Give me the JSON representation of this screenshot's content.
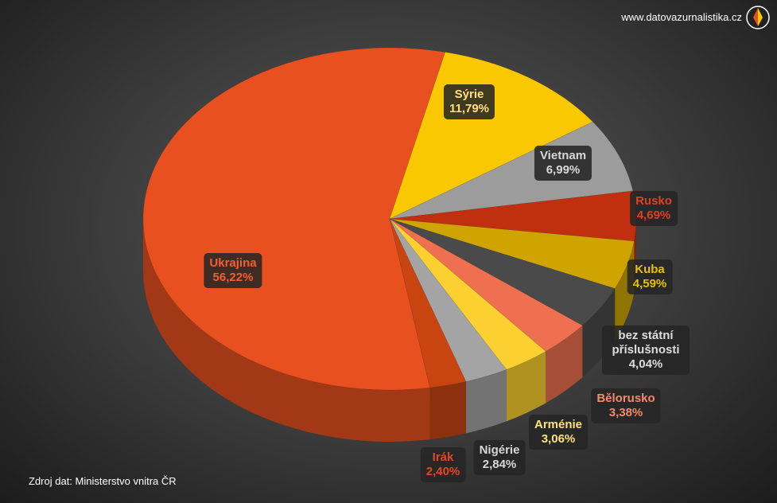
{
  "chart_data": {
    "type": "pie",
    "watermark": "www.datovazurnalistika.cz",
    "source": "Zdroj dat: Ministerstvo vnitra ČR",
    "categories": [
      "Ukrajina",
      "Sýrie",
      "Vietnam",
      "Rusko",
      "Kuba",
      "bez státní příslušnosti",
      "Bělorusko",
      "Arménie",
      "Nigérie",
      "Irák"
    ],
    "values": [
      56.22,
      11.79,
      6.99,
      4.69,
      4.59,
      4.04,
      3.38,
      3.06,
      2.84,
      2.4
    ],
    "value_labels": [
      "56,22%",
      "11,79%",
      "6,99%",
      "4,69%",
      "4,59%",
      "4,04%",
      "3,38%",
      "3,06%",
      "2,84%",
      "2,40%"
    ],
    "colors": [
      "#e8501f",
      "#fac800",
      "#9c9c9c",
      "#c0300f",
      "#cfa400",
      "#4a4a4a",
      "#ee7050",
      "#fbd030",
      "#a4a4a4",
      "#c84512"
    ],
    "label_colors": [
      "#f06030",
      "#ffe080",
      "#d8d8d8",
      "#e04020",
      "#e8c000",
      "#dddddd",
      "#f58a6a",
      "#ffe080",
      "#d8d8d8",
      "#e04a20"
    ]
  }
}
